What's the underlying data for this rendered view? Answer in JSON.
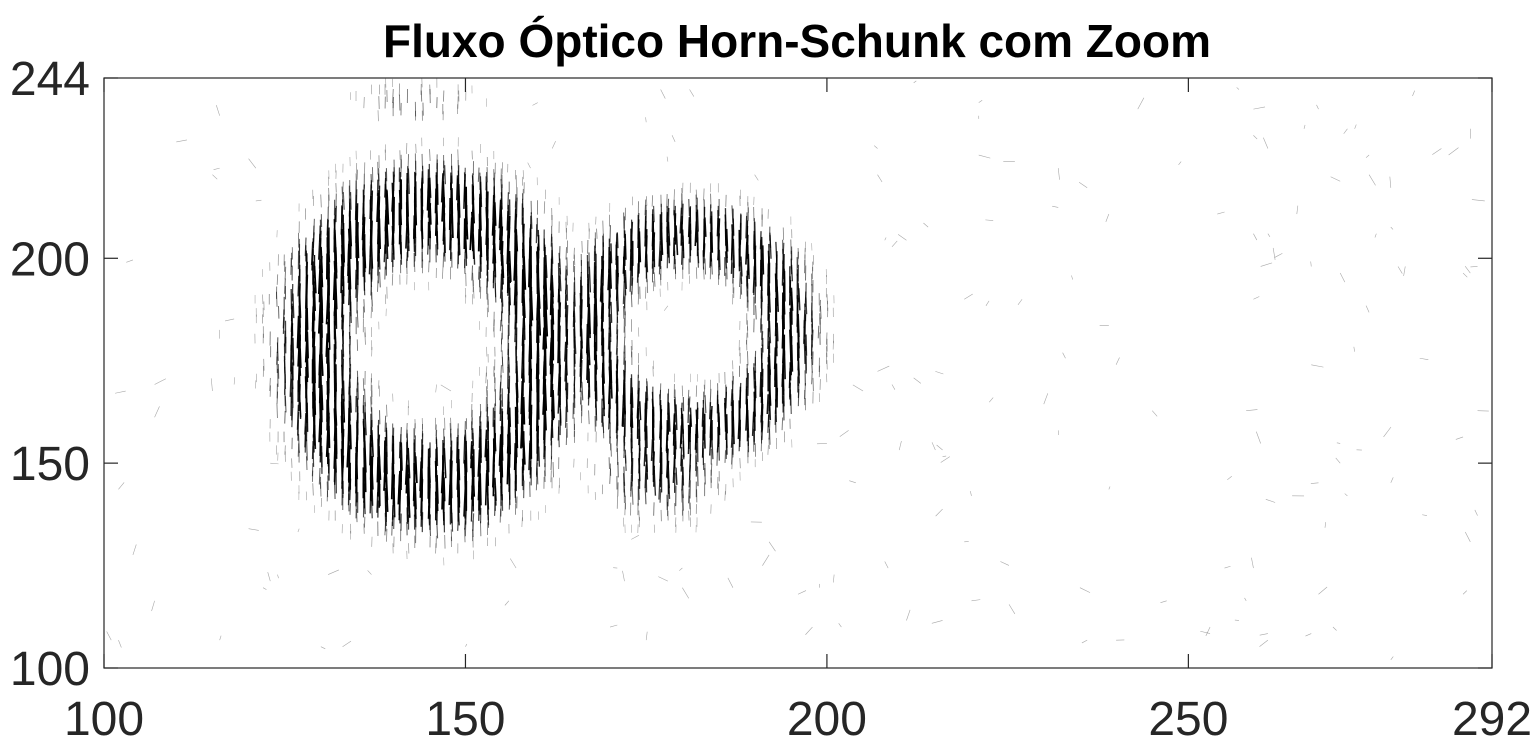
{
  "chart_data": {
    "type": "quiver",
    "title": "Fluxo Óptico Horn-Schunk com Zoom",
    "xlabel": "",
    "ylabel": "",
    "xlim": [
      100,
      292
    ],
    "ylim": [
      100,
      244
    ],
    "x_ticks": [
      100,
      150,
      200,
      250,
      292
    ],
    "y_ticks": [
      100,
      150,
      200,
      244
    ],
    "x_tick_labels": [
      "100",
      "150",
      "200",
      "250",
      "292"
    ],
    "y_tick_labels": [
      "100",
      "150",
      "200",
      "244"
    ],
    "grid": false,
    "legend": false,
    "box": true,
    "arrow_color": "#000000",
    "regions": [
      {
        "name": "left-ring",
        "cx": 145,
        "cy": 178,
        "rx": 20,
        "ry": 42,
        "magnitude": 1.0
      },
      {
        "name": "left-lower-lobe",
        "cx": 148,
        "cy": 145,
        "rx": 9,
        "ry": 14,
        "magnitude": 1.0
      },
      {
        "name": "right-ring",
        "cx": 181,
        "cy": 182,
        "rx": 17,
        "ry": 30,
        "magnitude": 0.85
      },
      {
        "name": "right-lower-lobe",
        "cx": 177,
        "cy": 150,
        "rx": 9,
        "ry": 14,
        "magnitude": 0.8
      },
      {
        "name": "upper-left-noise",
        "cx": 143,
        "cy": 238,
        "rx": 10,
        "ry": 6,
        "magnitude": 0.35
      },
      {
        "name": "background-noise",
        "cx": 196,
        "cy": 172,
        "rx": 96,
        "ry": 72,
        "magnitude": 0.12
      }
    ]
  }
}
